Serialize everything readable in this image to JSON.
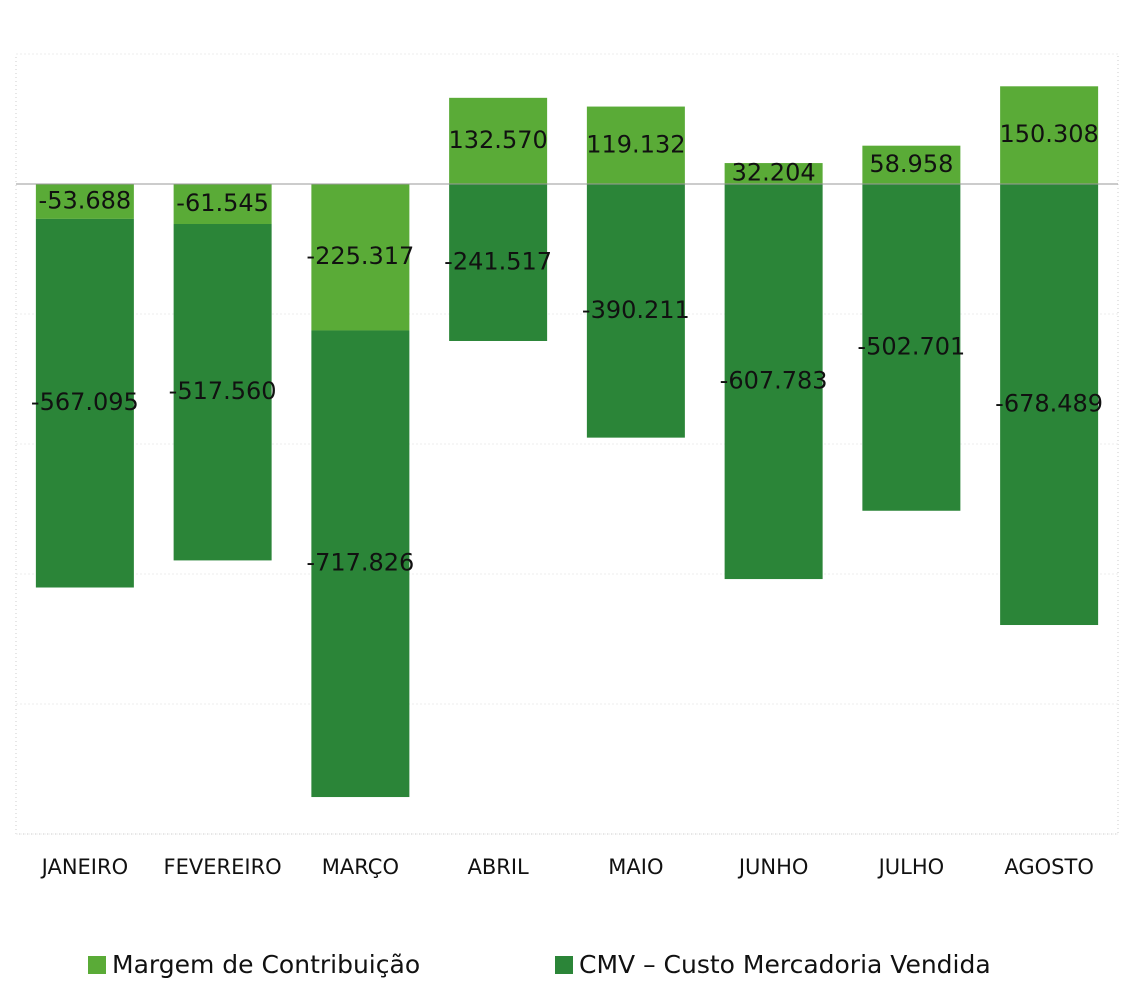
{
  "chart_data": {
    "type": "bar",
    "stacked": true,
    "categories": [
      "JANEIRO",
      "FEVEREIRO",
      "MARÇO",
      "ABRIL",
      "MAIO",
      "JUNHO",
      "JULHO",
      "AGOSTO"
    ],
    "series": [
      {
        "name": "Margem de Contribuição",
        "color": "#5aab37",
        "values": [
          -53688,
          -61545,
          -225317,
          132570,
          119132,
          32204,
          58958,
          150308
        ],
        "value_labels": [
          "-53.688",
          "-61.545",
          "-225.317",
          "132.570",
          "119.132",
          "32.204",
          "58.958",
          "150.308"
        ]
      },
      {
        "name": "CMV – Custo Mercadoria Vendida",
        "color": "#2b8538",
        "values": [
          -567095,
          -517560,
          -717826,
          -241517,
          -390211,
          -607783,
          -502701,
          -678489
        ],
        "value_labels": [
          "-567.095",
          "-517.560",
          "-717.826",
          "-241.517",
          "-390.211",
          "-607.783",
          "-502.701",
          "-678.489"
        ]
      }
    ],
    "ylim": [
      -1000000,
      200000
    ],
    "yticks": [
      -1000000,
      -800000,
      -600000,
      -400000,
      -200000,
      0,
      200000
    ],
    "grid": true,
    "legend": "bottom"
  }
}
